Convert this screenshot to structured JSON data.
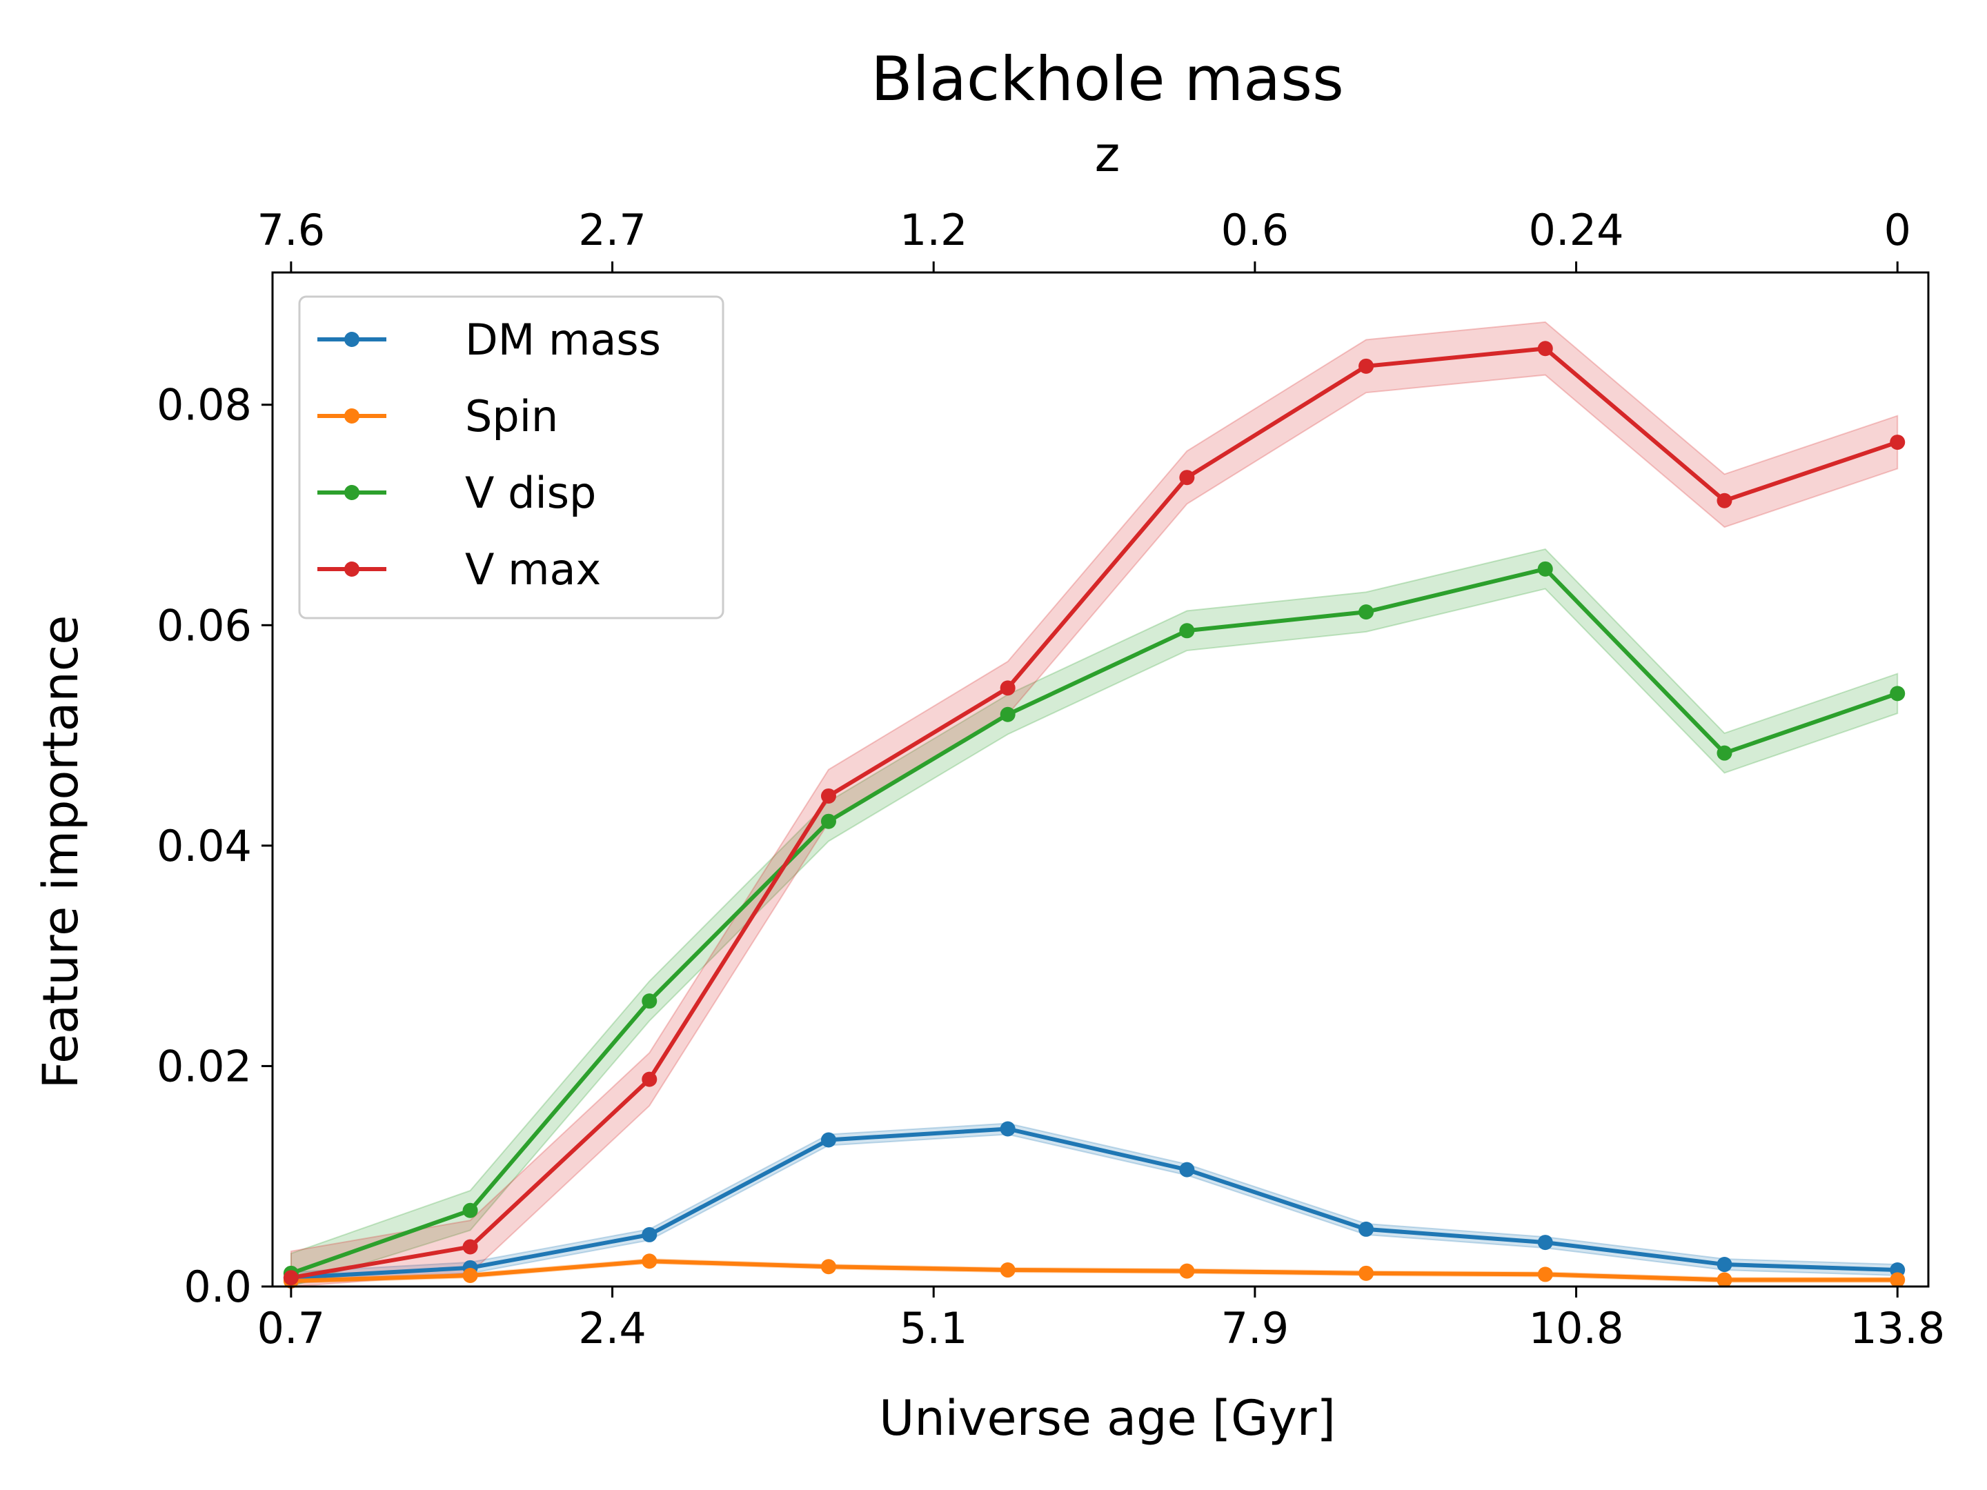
{
  "chart_data": {
    "type": "line",
    "title": "Blackhole mass",
    "xlabel": "Universe age [Gyr]",
    "ylabel": "Feature importance",
    "top_axis_label": "z",
    "xlim": [
      0.55,
      13.95
    ],
    "ylim": [
      0,
      0.092
    ],
    "x_ticks": [
      {
        "pos": 0.7,
        "label": "0.7"
      },
      {
        "pos": 3.3,
        "label": "2.4"
      },
      {
        "pos": 5.9,
        "label": "5.1"
      },
      {
        "pos": 8.5,
        "label": "7.9"
      },
      {
        "pos": 11.1,
        "label": "10.8"
      },
      {
        "pos": 13.7,
        "label": "13.8"
      }
    ],
    "top_ticks": [
      {
        "pos": 0.7,
        "label": "7.6"
      },
      {
        "pos": 3.3,
        "label": "2.7"
      },
      {
        "pos": 5.9,
        "label": "1.2"
      },
      {
        "pos": 8.5,
        "label": "0.6"
      },
      {
        "pos": 11.1,
        "label": "0.24"
      },
      {
        "pos": 13.7,
        "label": "0"
      }
    ],
    "y_ticks": [
      {
        "value": 0.0,
        "label": "0.0"
      },
      {
        "value": 0.02,
        "label": "0.02"
      },
      {
        "value": 0.04,
        "label": "0.04"
      },
      {
        "value": 0.06,
        "label": "0.06"
      },
      {
        "value": 0.08,
        "label": "0.08"
      }
    ],
    "x": [
      0.7,
      2.15,
      3.6,
      5.05,
      6.5,
      7.95,
      9.4,
      10.85,
      12.3,
      13.7
    ],
    "legend_position": "upper-left",
    "series": [
      {
        "name": "DM mass",
        "color": "#1f77b4",
        "values": [
          0.0008,
          0.0017,
          0.0047,
          0.0133,
          0.0143,
          0.0106,
          0.0052,
          0.004,
          0.002,
          0.0015
        ],
        "band": 0.0005
      },
      {
        "name": "Spin",
        "color": "#ff7f0e",
        "values": [
          0.0005,
          0.001,
          0.0023,
          0.0018,
          0.0015,
          0.0014,
          0.0012,
          0.0011,
          0.0006,
          0.0006
        ],
        "band": 0.0002
      },
      {
        "name": "V disp",
        "color": "#2ca02c",
        "values": [
          0.0012,
          0.0069,
          0.0259,
          0.0422,
          0.0519,
          0.0595,
          0.0612,
          0.0651,
          0.0484,
          0.0538
        ],
        "band": 0.0018
      },
      {
        "name": "V max",
        "color": "#d62728",
        "values": [
          0.0008,
          0.0036,
          0.0188,
          0.0445,
          0.0543,
          0.0734,
          0.0835,
          0.0851,
          0.0713,
          0.0766
        ],
        "band": 0.0024
      }
    ]
  }
}
